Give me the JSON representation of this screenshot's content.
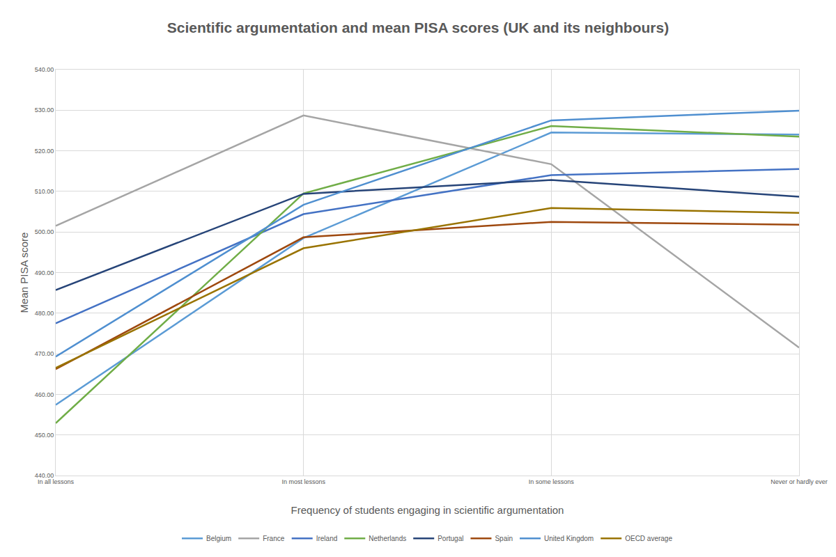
{
  "chart_data": {
    "type": "line",
    "title": "Scientific argumentation and mean PISA scores (UK and its neighbours)",
    "x_label": "Frequency of students engaging in scientific argumentation",
    "y_label": "Mean PISA score",
    "categories": [
      "In all lessons",
      "In most lessons",
      "In some lessons",
      "Never or hardly ever"
    ],
    "series": [
      {
        "name": "Belgium",
        "color": "#5b9bd5",
        "values": [
          457.4,
          498.5,
          524.5,
          524.0
        ]
      },
      {
        "name": "France",
        "color": "#a5a5a5",
        "values": [
          501.5,
          528.7,
          516.7,
          471.5
        ]
      },
      {
        "name": "Ireland",
        "color": "#4472c4",
        "values": [
          477.5,
          504.4,
          514.0,
          515.5
        ]
      },
      {
        "name": "Netherlands",
        "color": "#70ad47",
        "values": [
          452.9,
          509.5,
          526.1,
          523.5
        ]
      },
      {
        "name": "Portugal",
        "color": "#264478",
        "values": [
          485.7,
          509.4,
          512.8,
          508.7
        ]
      },
      {
        "name": "Spain",
        "color": "#9e480e",
        "values": [
          466.2,
          498.7,
          502.5,
          501.8
        ]
      },
      {
        "name": "United Kingdom",
        "color": "#4f8fd0",
        "values": [
          469.3,
          506.7,
          527.5,
          529.9
        ]
      },
      {
        "name": "OECD average",
        "color": "#997300",
        "values": [
          466.5,
          496.0,
          505.9,
          504.7
        ]
      }
    ],
    "ylim": [
      440,
      540
    ],
    "yticks": [
      {
        "value": 440,
        "label": "440.00"
      },
      {
        "value": 450,
        "label": "450.00"
      },
      {
        "value": 460,
        "label": "460.00"
      },
      {
        "value": 470,
        "label": "470.00"
      },
      {
        "value": 480,
        "label": "480.00"
      },
      {
        "value": 490,
        "label": "490.00"
      },
      {
        "value": 500,
        "label": "500.00"
      },
      {
        "value": 510,
        "label": "510.00"
      },
      {
        "value": 520,
        "label": "520.00"
      },
      {
        "value": 530,
        "label": "530.00"
      },
      {
        "value": 540,
        "label": "540.00"
      }
    ],
    "grid": true,
    "legend": "bottom"
  }
}
